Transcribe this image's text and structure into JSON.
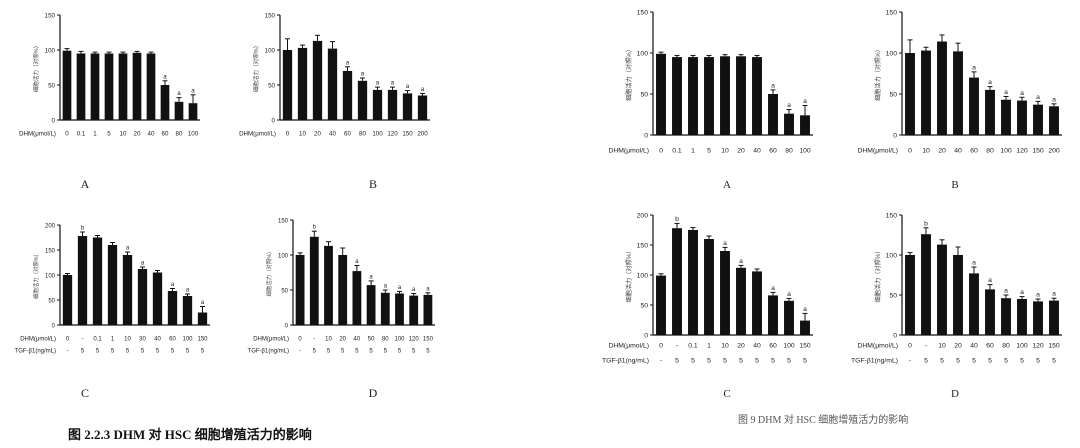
{
  "captions": {
    "left": "图 2.2.3   DHM 对 HSC 细胞增殖活力的影响",
    "right": "图 9   DHM 对 HSC 细胞增殖活力的影响"
  },
  "colors": {
    "bar": "#111111",
    "axis": "#111111",
    "text": "#222222"
  },
  "chart_data": [
    {
      "id": "left-A",
      "type": "bar",
      "panel_label": "A",
      "ylabel": "细胞活力（对照%）",
      "ylim": [
        0,
        150
      ],
      "yticks": [
        0,
        50,
        100,
        150
      ],
      "row_labels": [
        "DHM(μmol/L)"
      ],
      "categories": [
        "0",
        "0.1",
        "1",
        "5",
        "10",
        "20",
        "40",
        "60",
        "80",
        "100"
      ],
      "values": [
        99,
        95,
        95,
        95,
        95,
        96,
        95,
        50,
        26,
        24
      ],
      "errors": [
        3,
        3,
        2,
        2,
        2,
        2,
        2,
        6,
        6,
        12
      ],
      "sig": [
        "",
        "",
        "",
        "",
        "",
        "",
        "",
        "a",
        "a",
        "a"
      ]
    },
    {
      "id": "left-B",
      "type": "bar",
      "panel_label": "B",
      "ylabel": "细胞活力（对照%）",
      "ylim": [
        0,
        150
      ],
      "yticks": [
        0,
        50,
        100,
        150
      ],
      "row_labels": [
        "DHM(μmol/L)"
      ],
      "categories": [
        "0",
        "10",
        "20",
        "40",
        "60",
        "80",
        "100",
        "120",
        "150",
        "200"
      ],
      "values": [
        100,
        103,
        113,
        102,
        70,
        56,
        43,
        43,
        38,
        35
      ],
      "errors": [
        16,
        4,
        8,
        10,
        6,
        4,
        4,
        4,
        4,
        3
      ],
      "sig": [
        "",
        "",
        "",
        "",
        "a",
        "a",
        "a",
        "a",
        "a",
        "a"
      ]
    },
    {
      "id": "left-C",
      "type": "bar",
      "panel_label": "C",
      "ylabel": "细胞活力（对照%）",
      "ylim": [
        0,
        200
      ],
      "yticks": [
        0,
        50,
        100,
        150,
        200
      ],
      "row_labels": [
        "DHM(μmol/L)",
        "TGF-β1(ng/mL)"
      ],
      "categories": [
        "0",
        "-",
        "0.1",
        "1",
        "10",
        "30",
        "40",
        "60",
        "100",
        "150"
      ],
      "categories2": [
        "-",
        "5",
        "5",
        "5",
        "5",
        "5",
        "5",
        "5",
        "5",
        "5"
      ],
      "values": [
        100,
        178,
        175,
        160,
        140,
        112,
        105,
        68,
        58,
        25
      ],
      "errors": [
        3,
        8,
        4,
        5,
        6,
        4,
        4,
        5,
        4,
        12
      ],
      "sig": [
        "",
        "b",
        "",
        "",
        "a",
        "a",
        "",
        "a",
        "a",
        "a"
      ]
    },
    {
      "id": "left-D",
      "type": "bar",
      "panel_label": "D",
      "ylabel": "细胞活力（对照%）",
      "ylim": [
        0,
        150
      ],
      "yticks": [
        0,
        50,
        100,
        150
      ],
      "row_labels": [
        "DHM(μmol/L)",
        "TGF-β1(ng/mL)"
      ],
      "categories": [
        "0",
        "-",
        "10",
        "20",
        "40",
        "50",
        "80",
        "100",
        "120",
        "150"
      ],
      "categories2": [
        "-",
        "5",
        "5",
        "5",
        "5",
        "5",
        "5",
        "5",
        "5",
        "5"
      ],
      "values": [
        100,
        126,
        113,
        100,
        77,
        57,
        46,
        45,
        42,
        43
      ],
      "errors": [
        3,
        8,
        6,
        10,
        8,
        6,
        4,
        3,
        3,
        3
      ],
      "sig": [
        "",
        "b",
        "",
        "",
        "a",
        "a",
        "a",
        "a",
        "a",
        "a"
      ]
    },
    {
      "id": "right-A",
      "type": "bar",
      "panel_label": "A",
      "ylabel": "细胞活力（对照%）",
      "ylim": [
        0,
        150
      ],
      "yticks": [
        0,
        50,
        100,
        150
      ],
      "row_labels": [
        "DHM(μmol/L)"
      ],
      "categories": [
        "0",
        "0.1",
        "1",
        "5",
        "10",
        "20",
        "40",
        "60",
        "80",
        "100"
      ],
      "values": [
        99,
        95,
        95,
        95,
        96,
        96,
        95,
        50,
        26,
        24
      ],
      "errors": [
        2,
        2,
        2,
        2,
        2,
        2,
        2,
        5,
        5,
        12
      ],
      "sig": [
        "",
        "",
        "",
        "",
        "",
        "",
        "",
        "a",
        "a",
        "a"
      ]
    },
    {
      "id": "right-B",
      "type": "bar",
      "panel_label": "B",
      "ylabel": "细胞活力（对照%）",
      "ylim": [
        0,
        150
      ],
      "yticks": [
        0,
        50,
        100,
        150
      ],
      "row_labels": [
        "DHM(μmol/L)"
      ],
      "categories": [
        "0",
        "10",
        "20",
        "40",
        "60",
        "80",
        "100",
        "120",
        "150",
        "200"
      ],
      "values": [
        100,
        103,
        114,
        102,
        70,
        55,
        43,
        42,
        37,
        35
      ],
      "errors": [
        16,
        4,
        8,
        10,
        7,
        4,
        4,
        4,
        4,
        3
      ],
      "sig": [
        "",
        "",
        "",
        "",
        "a",
        "a",
        "a",
        "a",
        "a",
        "a"
      ]
    },
    {
      "id": "right-C",
      "type": "bar",
      "panel_label": "C",
      "ylabel": "细胞活力（对照%）",
      "ylim": [
        0,
        200
      ],
      "yticks": [
        0,
        50,
        100,
        150,
        200
      ],
      "row_labels": [
        "DHM(μmol/L)",
        "TGF-β1(ng/mL)"
      ],
      "categories": [
        "0",
        "-",
        "0.1",
        "1",
        "10",
        "20",
        "40",
        "60",
        "100",
        "150"
      ],
      "categories2": [
        "-",
        "5",
        "5",
        "5",
        "5",
        "5",
        "5",
        "5",
        "5",
        "5"
      ],
      "values": [
        99,
        178,
        175,
        160,
        140,
        112,
        106,
        66,
        57,
        24
      ],
      "errors": [
        3,
        8,
        4,
        5,
        6,
        4,
        4,
        5,
        4,
        12
      ],
      "sig": [
        "",
        "b",
        "",
        "",
        "a",
        "a",
        "",
        "a",
        "a",
        "a"
      ]
    },
    {
      "id": "right-D",
      "type": "bar",
      "panel_label": "D",
      "ylabel": "细胞活力（对照%）",
      "ylim": [
        0,
        150
      ],
      "yticks": [
        0,
        50,
        100,
        150
      ],
      "row_labels": [
        "DHM(μmol/L)",
        "TGF-β1(ng/mL)"
      ],
      "categories": [
        "0",
        "-",
        "10",
        "20",
        "40",
        "60",
        "80",
        "100",
        "120",
        "150"
      ],
      "categories2": [
        "-",
        "5",
        "5",
        "5",
        "5",
        "5",
        "5",
        "5",
        "5",
        "5"
      ],
      "values": [
        100,
        126,
        113,
        100,
        77,
        57,
        46,
        45,
        42,
        43
      ],
      "errors": [
        3,
        8,
        6,
        10,
        8,
        6,
        4,
        3,
        3,
        3
      ],
      "sig": [
        "",
        "b",
        "",
        "",
        "a",
        "a",
        "a",
        "a",
        "a",
        "a"
      ]
    }
  ]
}
